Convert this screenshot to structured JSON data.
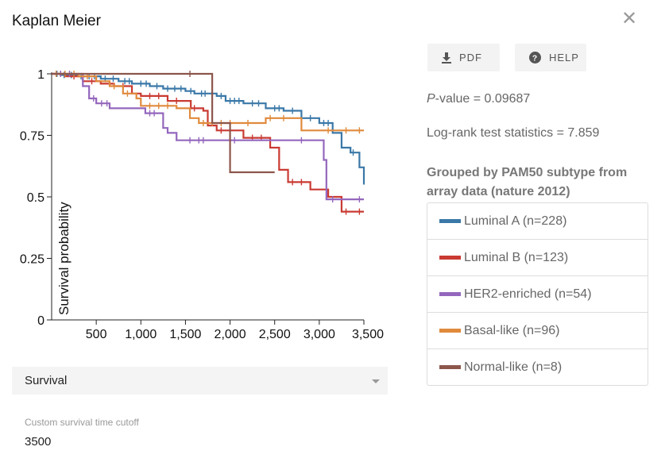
{
  "dialog": {
    "title": "Kaplan Meier",
    "close_icon": "close-icon"
  },
  "toolbar": {
    "pdf_label": "PDF",
    "help_label": "HELP",
    "pdf_icon": "download-icon",
    "help_icon": "help-circle-icon"
  },
  "stats": {
    "p_label": "P",
    "p_rest": "-value = 0.09687",
    "logrank": "Log-rank test statistics = 7.859"
  },
  "grouping": {
    "title": "Grouped by PAM50 subtype from array data (nature 2012)"
  },
  "legend": [
    {
      "label": "Luminal A (n=228)",
      "color": "#3a78a8"
    },
    {
      "label": "Luminal B (n=123)",
      "color": "#c93a32"
    },
    {
      "label": "HER2-enriched (n=54)",
      "color": "#9467bd"
    },
    {
      "label": "Basal-like (n=96)",
      "color": "#e08a3c"
    },
    {
      "label": "Normal-like (n=8)",
      "color": "#8c564b"
    }
  ],
  "select": {
    "value": "Survival"
  },
  "cutoff": {
    "label": "Custom survival time cutoff",
    "value": "3500"
  },
  "chart_data": {
    "type": "line",
    "ylabel": "Survival probability",
    "xlim": [
      0,
      3500
    ],
    "ylim": [
      0,
      1
    ],
    "x_ticks": [
      "500",
      "1,000",
      "1,500",
      "2,000",
      "2,500",
      "3,000",
      "3,500"
    ],
    "y_ticks": [
      "0",
      "0.25",
      "0.5",
      "0.75",
      "1"
    ],
    "series": [
      {
        "name": "Luminal A (n=228)",
        "color": "#3a78a8",
        "steps": [
          [
            0,
            1
          ],
          [
            100,
            0.995
          ],
          [
            300,
            0.99
          ],
          [
            550,
            0.98
          ],
          [
            750,
            0.97
          ],
          [
            900,
            0.96
          ],
          [
            1100,
            0.95
          ],
          [
            1250,
            0.94
          ],
          [
            1500,
            0.93
          ],
          [
            1600,
            0.92
          ],
          [
            1850,
            0.91
          ],
          [
            1950,
            0.89
          ],
          [
            2150,
            0.88
          ],
          [
            2400,
            0.86
          ],
          [
            2600,
            0.85
          ],
          [
            2800,
            0.82
          ],
          [
            3000,
            0.8
          ],
          [
            3150,
            0.76
          ],
          [
            3250,
            0.7
          ],
          [
            3350,
            0.68
          ],
          [
            3450,
            0.62
          ],
          [
            3500,
            0.55
          ]
        ],
        "censor": [
          60,
          140,
          220,
          330,
          420,
          480,
          600,
          690,
          820,
          870,
          1000,
          1060,
          1180,
          1300,
          1380,
          1450,
          1560,
          1680,
          1720,
          1800,
          1900,
          2000,
          2050,
          2100,
          2250,
          2320,
          2500,
          2550,
          2700,
          2900,
          3050,
          3100,
          3380
        ]
      },
      {
        "name": "Luminal B (n=123)",
        "color": "#c93a32",
        "steps": [
          [
            0,
            1
          ],
          [
            150,
            0.99
          ],
          [
            350,
            0.97
          ],
          [
            550,
            0.96
          ],
          [
            700,
            0.95
          ],
          [
            900,
            0.92
          ],
          [
            1000,
            0.91
          ],
          [
            1300,
            0.89
          ],
          [
            1560,
            0.86
          ],
          [
            1700,
            0.85
          ],
          [
            1750,
            0.79
          ],
          [
            1850,
            0.77
          ],
          [
            2150,
            0.74
          ],
          [
            2450,
            0.7
          ],
          [
            2550,
            0.61
          ],
          [
            2650,
            0.56
          ],
          [
            2900,
            0.53
          ],
          [
            3100,
            0.5
          ],
          [
            3250,
            0.44
          ],
          [
            3500,
            0.44
          ]
        ],
        "censor": [
          100,
          250,
          450,
          650,
          800,
          1100,
          1200,
          1400,
          1600,
          1900,
          2000,
          2250,
          2350,
          2700,
          2800,
          3300,
          3450
        ]
      },
      {
        "name": "HER2-enriched (n=54)",
        "color": "#9467bd",
        "steps": [
          [
            0,
            1
          ],
          [
            350,
            0.95
          ],
          [
            420,
            0.9
          ],
          [
            500,
            0.88
          ],
          [
            650,
            0.86
          ],
          [
            1050,
            0.84
          ],
          [
            1250,
            0.78
          ],
          [
            1300,
            0.76
          ],
          [
            1400,
            0.73
          ],
          [
            3050,
            0.65
          ],
          [
            3080,
            0.49
          ],
          [
            3500,
            0.49
          ]
        ],
        "censor": [
          100,
          200,
          470,
          560,
          620,
          1100,
          1150,
          1550,
          1650,
          1700,
          2050,
          2800,
          3150,
          3450
        ]
      },
      {
        "name": "Basal-like (n=96)",
        "color": "#e08a3c",
        "steps": [
          [
            0,
            1
          ],
          [
            300,
            0.99
          ],
          [
            500,
            0.97
          ],
          [
            650,
            0.95
          ],
          [
            800,
            0.92
          ],
          [
            950,
            0.9
          ],
          [
            1000,
            0.87
          ],
          [
            1400,
            0.86
          ],
          [
            1550,
            0.82
          ],
          [
            1650,
            0.8
          ],
          [
            2400,
            0.82
          ],
          [
            2800,
            0.77
          ],
          [
            3500,
            0.77
          ]
        ],
        "censor": [
          50,
          150,
          250,
          400,
          700,
          850,
          1100,
          1200,
          1300,
          1700,
          1800,
          1900,
          2000,
          2200,
          2450,
          2600,
          3100,
          3300,
          3450
        ]
      },
      {
        "name": "Normal-like (n=8)",
        "color": "#8c564b",
        "steps": [
          [
            0,
            1
          ],
          [
            1800,
            0.8
          ],
          [
            2000,
            0.6
          ],
          [
            2500,
            0.6
          ]
        ],
        "censor": [
          1550
        ]
      }
    ]
  }
}
